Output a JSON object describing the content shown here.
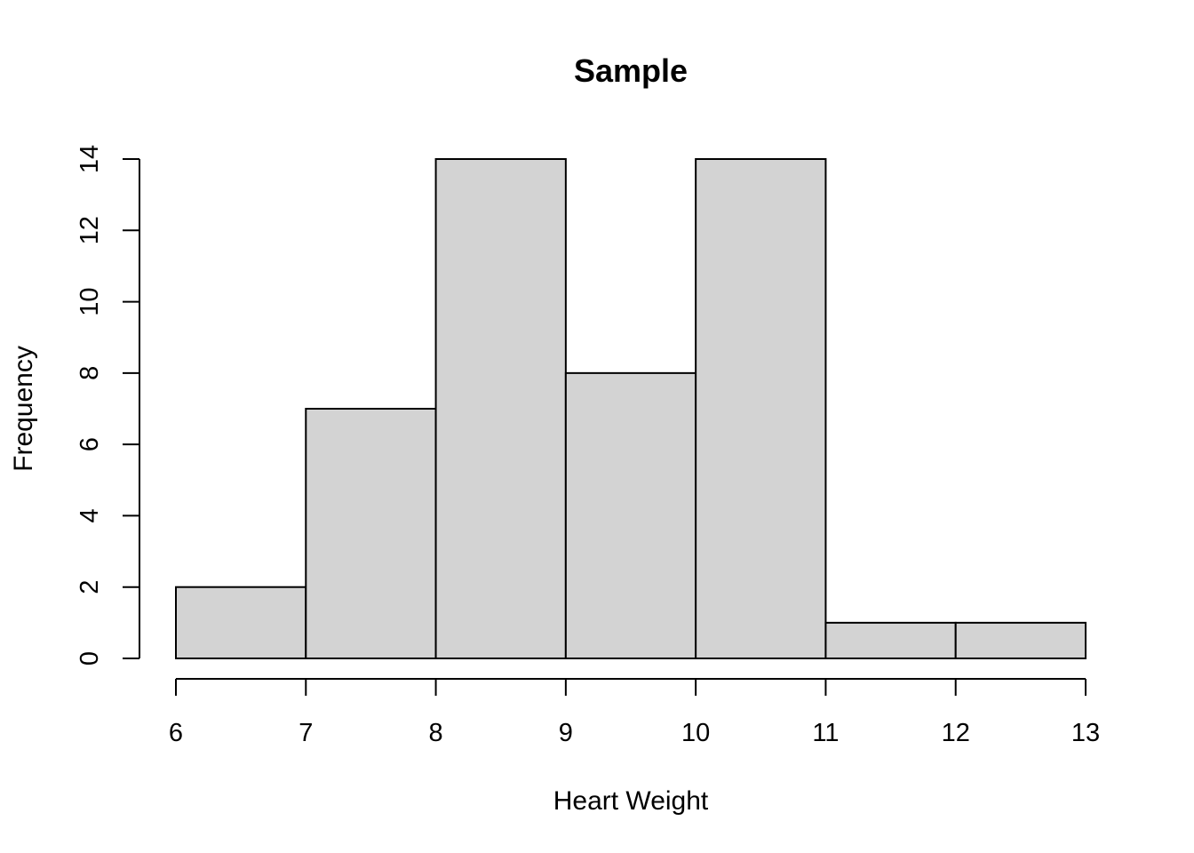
{
  "chart_data": {
    "type": "bar",
    "title": "Sample",
    "xlabel": "Heart Weight",
    "ylabel": "Frequency",
    "bins": [
      {
        "from": 6,
        "to": 7,
        "count": 2
      },
      {
        "from": 7,
        "to": 8,
        "count": 7
      },
      {
        "from": 8,
        "to": 9,
        "count": 14
      },
      {
        "from": 9,
        "to": 10,
        "count": 8
      },
      {
        "from": 10,
        "to": 11,
        "count": 14
      },
      {
        "from": 11,
        "to": 12,
        "count": 1
      },
      {
        "from": 12,
        "to": 13,
        "count": 1
      }
    ],
    "xlim": [
      6,
      13
    ],
    "ylim": [
      0,
      14
    ],
    "xticks": [
      6,
      7,
      8,
      9,
      10,
      11,
      12,
      13
    ],
    "yticks": [
      0,
      2,
      4,
      6,
      8,
      10,
      12,
      14
    ],
    "grid": false,
    "bar_color": "#d3d3d3",
    "edge_color": "#000000"
  }
}
